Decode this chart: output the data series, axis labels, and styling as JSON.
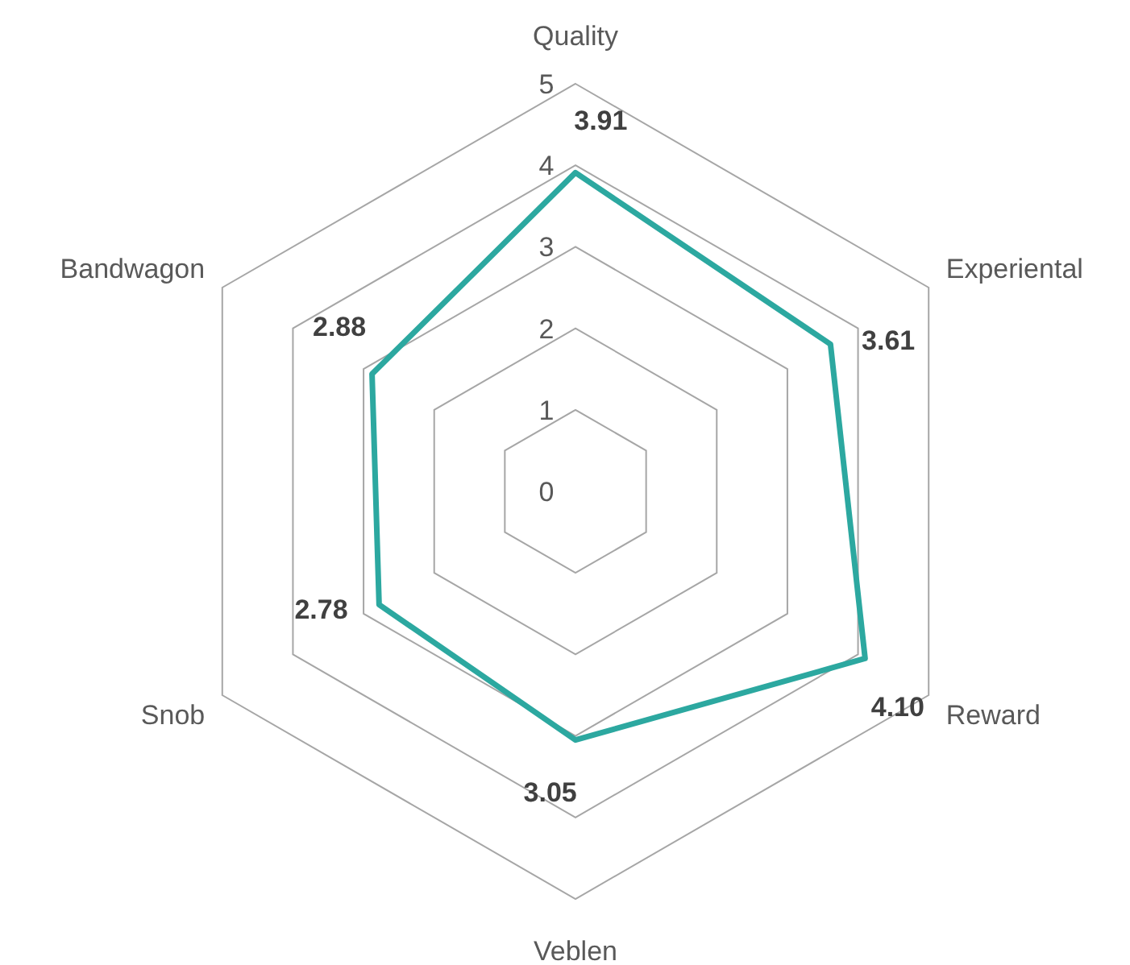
{
  "chart_data": {
    "type": "radar",
    "categories": [
      "Quality",
      "Experiental",
      "Reward",
      "Veblen",
      "Snob",
      "Bandwagon"
    ],
    "series": [
      {
        "color": "#2ca8a0",
        "values": [
          3.91,
          3.61,
          4.1,
          3.05,
          2.78,
          2.88
        ],
        "value_labels": [
          "3.91",
          "3.61",
          "4.10",
          "3.05",
          "2.78",
          "2.88"
        ]
      }
    ],
    "ylim": [
      0,
      5
    ],
    "yticks": [
      0,
      1,
      2,
      3,
      4,
      5
    ],
    "grid": true,
    "marker": "none"
  }
}
